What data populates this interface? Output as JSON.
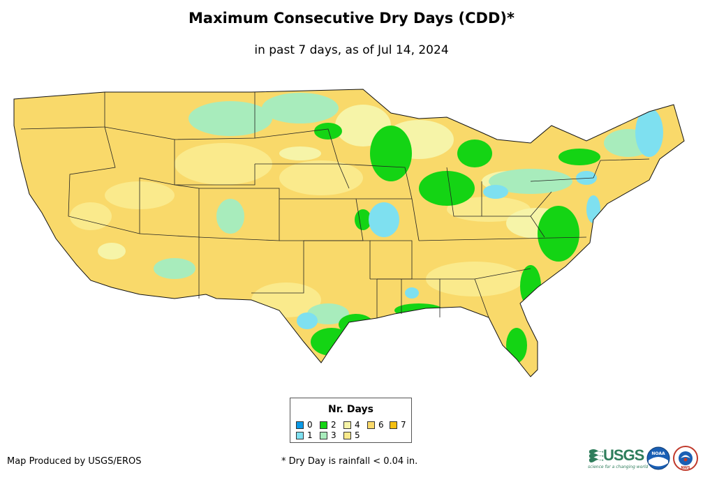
{
  "map": {
    "title": "Maximum Consecutive Dry Days (CDD)*",
    "subtitle": "in past 7 days, as of Jul 14, 2024",
    "region": "Contiguous United States"
  },
  "legend": {
    "title": "Nr. Days",
    "items": [
      {
        "label": "0",
        "color": "#0a99e6"
      },
      {
        "label": "1",
        "color": "#7ee0f0"
      },
      {
        "label": "2",
        "color": "#14d414"
      },
      {
        "label": "3",
        "color": "#a8ecbc"
      },
      {
        "label": "4",
        "color": "#f6f4a8"
      },
      {
        "label": "5",
        "color": "#faea8c"
      },
      {
        "label": "6",
        "color": "#f9d96a"
      },
      {
        "label": "7",
        "color": "#f5bf10"
      }
    ]
  },
  "footer": {
    "credit": "Map Produced by USGS/EROS",
    "footnote": "* Dry Day is rainfall < 0.04 in.",
    "logos": [
      {
        "name": "USGS",
        "text": "USGS",
        "tagline": "science for a changing world"
      },
      {
        "name": "NOAA",
        "text": "NOAA"
      },
      {
        "name": "National Weather Service",
        "text": "NWS"
      }
    ]
  }
}
